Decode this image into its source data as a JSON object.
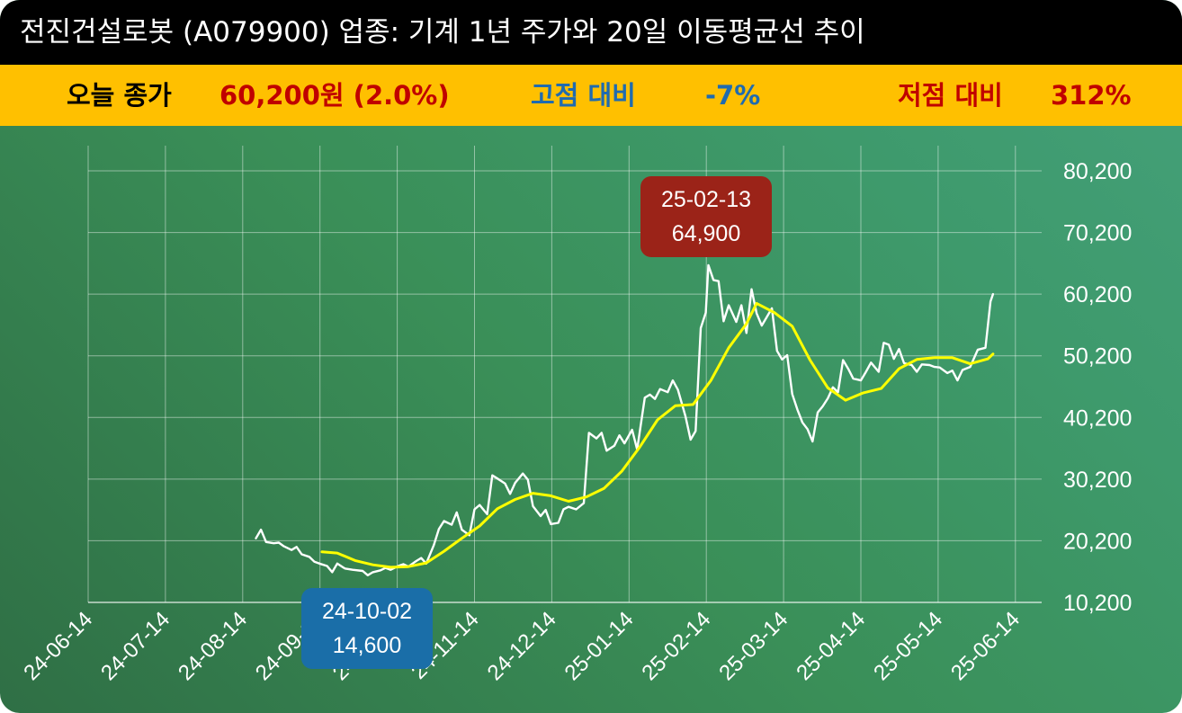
{
  "title": "전진건설로봇 (A079900) 업종: 기계 1년 주가와 20일 이동평균선 추이",
  "stats": {
    "today_label": "오늘 종가",
    "today_value": "60,200원 (2.0%)",
    "high_label": "고점 대비",
    "high_value": "-7%",
    "low_label": "저점 대비",
    "low_value": "312%"
  },
  "colors": {
    "title_bg": "#000000",
    "stat_bg": "#ffc000",
    "price_line": "#ffffff",
    "ma_line": "#ffff00",
    "high_box": "#9b2318",
    "low_box": "#1a6ea8",
    "today_value": "#c00000",
    "high_label": "#1f6bb0",
    "low_label": "#c00000"
  },
  "chart_data": {
    "type": "line",
    "x_ticks": [
      "24-06-14",
      "24-07-14",
      "24-08-14",
      "24-09-14",
      "24-10-14",
      "24-11-14",
      "24-12-14",
      "25-01-14",
      "25-02-14",
      "25-03-14",
      "25-04-14",
      "25-05-14",
      "25-06-14"
    ],
    "y_ticks": [
      "80,200",
      "70,200",
      "60,200",
      "50,200",
      "40,200",
      "30,200",
      "20,200",
      "10,200"
    ],
    "ylim": [
      10200,
      80200
    ],
    "grid": true,
    "series": [
      {
        "name": "price",
        "values": [
          [
            "2024-08-19",
            20600
          ],
          [
            "2024-08-21",
            22000
          ],
          [
            "2024-08-23",
            20000
          ],
          [
            "2024-08-26",
            19800
          ],
          [
            "2024-08-28",
            19900
          ],
          [
            "2024-08-30",
            19300
          ],
          [
            "2024-09-02",
            18700
          ],
          [
            "2024-09-04",
            19200
          ],
          [
            "2024-09-06",
            18000
          ],
          [
            "2024-09-09",
            17600
          ],
          [
            "2024-09-11",
            16800
          ],
          [
            "2024-09-13",
            16500
          ],
          [
            "2024-09-16",
            16100
          ],
          [
            "2024-09-18",
            15100
          ],
          [
            "2024-09-20",
            16500
          ],
          [
            "2024-09-23",
            15700
          ],
          [
            "2024-09-26",
            15500
          ],
          [
            "2024-09-30",
            15300
          ],
          [
            "2024-10-02",
            14600
          ],
          [
            "2024-10-04",
            15100
          ],
          [
            "2024-10-07",
            15400
          ],
          [
            "2024-10-09",
            15800
          ],
          [
            "2024-10-11",
            15500
          ],
          [
            "2024-10-14",
            16100
          ],
          [
            "2024-10-16",
            16400
          ],
          [
            "2024-10-18",
            16000
          ],
          [
            "2024-10-21",
            16900
          ],
          [
            "2024-10-23",
            17400
          ],
          [
            "2024-10-25",
            16500
          ],
          [
            "2024-10-28",
            19500
          ],
          [
            "2024-10-30",
            22100
          ],
          [
            "2024-11-01",
            23400
          ],
          [
            "2024-11-04",
            22800
          ],
          [
            "2024-11-06",
            24800
          ],
          [
            "2024-11-08",
            22000
          ],
          [
            "2024-11-11",
            21100
          ],
          [
            "2024-11-13",
            25300
          ],
          [
            "2024-11-15",
            26000
          ],
          [
            "2024-11-18",
            24500
          ],
          [
            "2024-11-20",
            30800
          ],
          [
            "2024-11-22",
            30300
          ],
          [
            "2024-11-25",
            29500
          ],
          [
            "2024-11-27",
            27800
          ],
          [
            "2024-11-29",
            29600
          ],
          [
            "2024-12-02",
            31100
          ],
          [
            "2024-12-04",
            30100
          ],
          [
            "2024-12-06",
            25800
          ],
          [
            "2024-12-09",
            24200
          ],
          [
            "2024-12-11",
            25200
          ],
          [
            "2024-12-13",
            22900
          ],
          [
            "2024-12-16",
            23100
          ],
          [
            "2024-12-18",
            25300
          ],
          [
            "2024-12-20",
            25700
          ],
          [
            "2024-12-23",
            25300
          ],
          [
            "2024-12-26",
            26300
          ],
          [
            "2024-12-28",
            37700
          ],
          [
            "2024-12-31",
            36800
          ],
          [
            "2025-01-02",
            37700
          ],
          [
            "2025-01-04",
            34800
          ],
          [
            "2025-01-07",
            35600
          ],
          [
            "2025-01-09",
            37300
          ],
          [
            "2025-01-11",
            36000
          ],
          [
            "2025-01-14",
            38200
          ],
          [
            "2025-01-16",
            35000
          ],
          [
            "2025-01-19",
            43400
          ],
          [
            "2025-01-21",
            43900
          ],
          [
            "2025-01-23",
            43200
          ],
          [
            "2025-01-25",
            44800
          ],
          [
            "2025-01-28",
            44300
          ],
          [
            "2025-01-30",
            46200
          ],
          [
            "2025-02-01",
            44700
          ],
          [
            "2025-02-04",
            40400
          ],
          [
            "2025-02-06",
            36600
          ],
          [
            "2025-02-08",
            38000
          ],
          [
            "2025-02-10",
            54700
          ],
          [
            "2025-02-12",
            57200
          ],
          [
            "2025-02-13",
            64900
          ],
          [
            "2025-02-15",
            62500
          ],
          [
            "2025-02-17",
            62300
          ],
          [
            "2025-02-19",
            55800
          ],
          [
            "2025-02-21",
            58400
          ],
          [
            "2025-02-24",
            55700
          ],
          [
            "2025-02-26",
            58400
          ],
          [
            "2025-02-28",
            53900
          ],
          [
            "2025-03-02",
            61000
          ],
          [
            "2025-03-04",
            57100
          ],
          [
            "2025-03-06",
            55100
          ],
          [
            "2025-03-08",
            56500
          ],
          [
            "2025-03-10",
            57900
          ],
          [
            "2025-03-12",
            51000
          ],
          [
            "2025-03-14",
            49600
          ],
          [
            "2025-03-16",
            50300
          ],
          [
            "2025-03-18",
            44000
          ],
          [
            "2025-03-20",
            41500
          ],
          [
            "2025-03-22",
            39400
          ],
          [
            "2025-03-24",
            38300
          ],
          [
            "2025-03-26",
            36300
          ],
          [
            "2025-03-28",
            41000
          ],
          [
            "2025-03-30",
            42000
          ],
          [
            "2025-04-01",
            43300
          ],
          [
            "2025-04-03",
            45100
          ],
          [
            "2025-04-05",
            44300
          ],
          [
            "2025-04-07",
            49500
          ],
          [
            "2025-04-09",
            48100
          ],
          [
            "2025-04-11",
            46500
          ],
          [
            "2025-04-14",
            46200
          ],
          [
            "2025-04-16",
            47600
          ],
          [
            "2025-04-18",
            49100
          ],
          [
            "2025-04-21",
            47600
          ],
          [
            "2025-04-23",
            52300
          ],
          [
            "2025-04-25",
            52000
          ],
          [
            "2025-04-27",
            49700
          ],
          [
            "2025-04-29",
            51300
          ],
          [
            "2025-05-01",
            49000
          ],
          [
            "2025-05-04",
            48700
          ],
          [
            "2025-05-06",
            47600
          ],
          [
            "2025-05-08",
            48800
          ],
          [
            "2025-05-11",
            48700
          ],
          [
            "2025-05-13",
            48400
          ],
          [
            "2025-05-15",
            48300
          ],
          [
            "2025-05-18",
            47400
          ],
          [
            "2025-05-20",
            47800
          ],
          [
            "2025-05-22",
            46200
          ],
          [
            "2025-05-24",
            47900
          ],
          [
            "2025-05-27",
            48400
          ],
          [
            "2025-05-30",
            51200
          ],
          [
            "2025-06-02",
            51500
          ],
          [
            "2025-06-04",
            59000
          ],
          [
            "2025-06-05",
            60200
          ]
        ]
      },
      {
        "name": "ma20",
        "values": [
          [
            "2024-09-14",
            18400
          ],
          [
            "2024-09-20",
            18200
          ],
          [
            "2024-09-27",
            17000
          ],
          [
            "2024-10-04",
            16300
          ],
          [
            "2024-10-11",
            15900
          ],
          [
            "2024-10-18",
            16000
          ],
          [
            "2024-10-25",
            16600
          ],
          [
            "2024-11-01",
            18500
          ],
          [
            "2024-11-08",
            20600
          ],
          [
            "2024-11-15",
            22600
          ],
          [
            "2024-11-22",
            25400
          ],
          [
            "2024-11-29",
            26900
          ],
          [
            "2024-12-06",
            27900
          ],
          [
            "2024-12-13",
            27500
          ],
          [
            "2024-12-20",
            26600
          ],
          [
            "2024-12-27",
            27300
          ],
          [
            "2025-01-03",
            28700
          ],
          [
            "2025-01-10",
            31500
          ],
          [
            "2025-01-17",
            35400
          ],
          [
            "2025-01-24",
            39800
          ],
          [
            "2025-01-31",
            42100
          ],
          [
            "2025-02-07",
            42300
          ],
          [
            "2025-02-14",
            46200
          ],
          [
            "2025-02-21",
            51500
          ],
          [
            "2025-02-28",
            55400
          ],
          [
            "2025-03-04",
            58700
          ],
          [
            "2025-03-11",
            57200
          ],
          [
            "2025-03-18",
            55000
          ],
          [
            "2025-03-25",
            49500
          ],
          [
            "2025-04-01",
            45000
          ],
          [
            "2025-04-08",
            43000
          ],
          [
            "2025-04-15",
            44200
          ],
          [
            "2025-04-22",
            44900
          ],
          [
            "2025-04-29",
            48100
          ],
          [
            "2025-05-06",
            49600
          ],
          [
            "2025-05-13",
            49900
          ],
          [
            "2025-05-20",
            49900
          ],
          [
            "2025-05-27",
            48900
          ],
          [
            "2025-06-03",
            49700
          ],
          [
            "2025-06-05",
            50500
          ]
        ]
      }
    ],
    "annotations": [
      {
        "kind": "high",
        "date": "25-02-13",
        "value": "64,900"
      },
      {
        "kind": "low",
        "date": "24-10-02",
        "value": "14,600"
      }
    ]
  }
}
